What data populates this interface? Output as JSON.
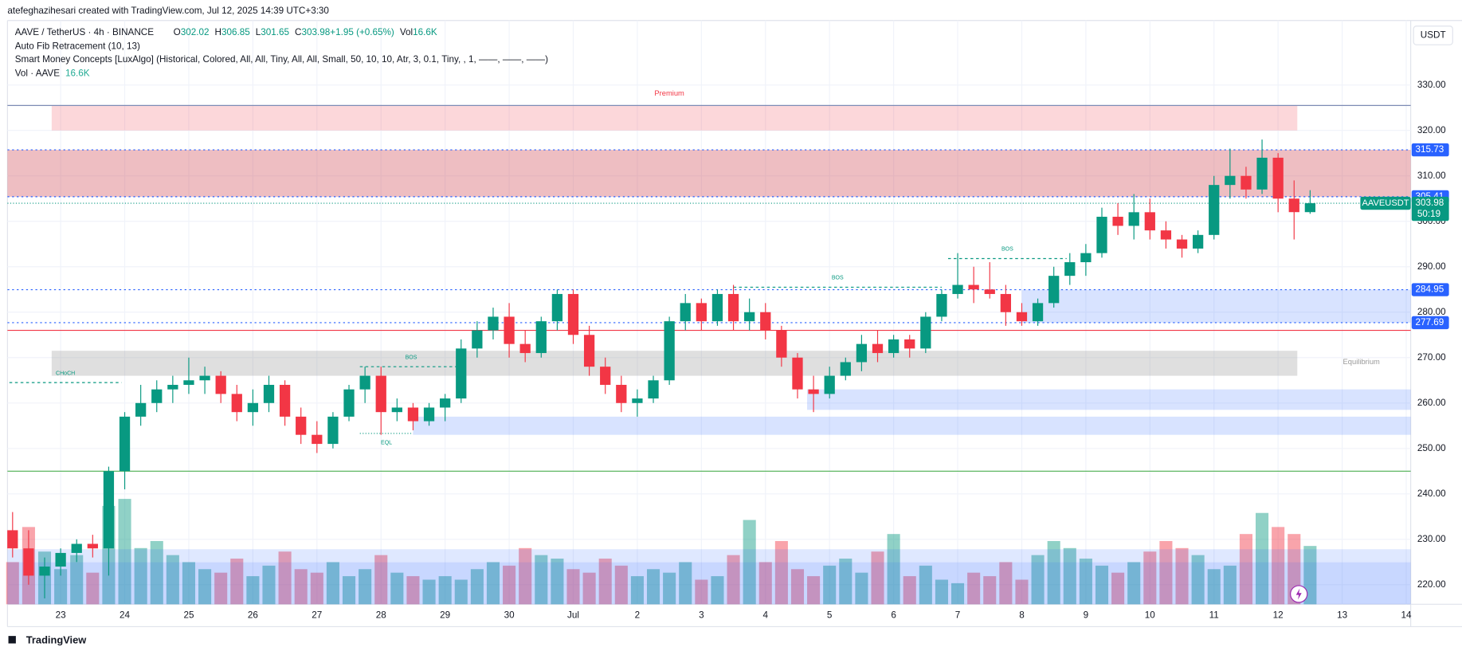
{
  "header": {
    "credit": "atefeghazihesari created with TradingView.com, Jul 12, 2025 14:39 UTC+3:30",
    "symbol": "AAVE / TetherUS · 4h · BINANCE",
    "quote": [
      {
        "k": "O",
        "v": "302.02"
      },
      {
        "k": "H",
        "v": "306.85"
      },
      {
        "k": "L",
        "v": "301.65"
      },
      {
        "k": "C",
        "v": "303.98"
      },
      {
        "k": "",
        "v": "+1.95 (+0.65%)"
      },
      {
        "k": "Vol",
        "v": "16.6K"
      }
    ],
    "indicators": [
      "Auto Fib Retracement (10, 13)",
      "Smart Money Concepts [LuxAlgo] (Historical, Colored, All, All, Tiny, All, All, Small, 50, 10, 10, Atr, 3, 0.1, Tiny, , 1, ——, ——, ——)"
    ],
    "volume_name": "Vol · AAVE",
    "volume_value": "16.6K",
    "currency": "USDT",
    "logo": "TradingView"
  },
  "chart_data": {
    "type": "candlestick",
    "up_color": "#089981",
    "down_color": "#f23645",
    "xlim": [
      22.17,
      44.07
    ],
    "xticks": [
      23,
      24,
      25,
      26,
      27,
      28,
      29,
      30,
      {
        "value": 31,
        "label": "Jul"
      },
      {
        "value": 32,
        "label": "2"
      },
      {
        "value": 33,
        "label": "3"
      },
      {
        "value": 34,
        "label": "4"
      },
      {
        "value": 35,
        "label": "5"
      },
      {
        "value": 36,
        "label": "6"
      },
      {
        "value": 37,
        "label": "7"
      },
      {
        "value": 38,
        "label": "8"
      },
      {
        "value": 39,
        "label": "9"
      },
      {
        "value": 40,
        "label": "10"
      },
      {
        "value": 41,
        "label": "11"
      },
      {
        "value": 42,
        "label": "12"
      },
      {
        "value": 43,
        "label": "13"
      },
      {
        "value": 44,
        "label": "14"
      }
    ],
    "ylim": [
      215.7,
      344.2
    ],
    "yticks": [
      {
        "value": 220,
        "label": "220.00"
      },
      {
        "value": 230,
        "label": "230.00"
      },
      {
        "value": 240,
        "label": "240.00"
      },
      {
        "value": 250,
        "label": "250.00"
      },
      {
        "value": 260,
        "label": "260.00"
      },
      {
        "value": 270,
        "label": "270.00"
      },
      {
        "value": 280,
        "label": "280.00"
      },
      {
        "value": 290,
        "label": "290.00"
      },
      {
        "value": 300,
        "label": "300.00"
      },
      {
        "value": 310,
        "label": "310.00"
      },
      {
        "value": 320,
        "label": "320.00"
      },
      {
        "value": 330,
        "label": "330.00"
      }
    ],
    "x": [
      22.25,
      22.5,
      22.75,
      23,
      23.25,
      23.5,
      23.75,
      24,
      24.25,
      24.5,
      24.75,
      25,
      25.25,
      25.5,
      25.75,
      26,
      26.25,
      26.5,
      26.75,
      27,
      27.25,
      27.5,
      27.75,
      28,
      28.25,
      28.5,
      28.75,
      29,
      29.25,
      29.5,
      29.75,
      30,
      30.25,
      30.5,
      30.75,
      31,
      31.25,
      31.5,
      31.75,
      32,
      32.25,
      32.5,
      32.75,
      33,
      33.25,
      33.5,
      33.75,
      34,
      34.25,
      34.5,
      34.75,
      35,
      35.25,
      35.5,
      35.75,
      36,
      36.25,
      36.5,
      36.75,
      37,
      37.25,
      37.5,
      37.75,
      38,
      38.25,
      38.5,
      38.75,
      39,
      39.25,
      39.5,
      39.75,
      40,
      40.25,
      40.5,
      40.75,
      41,
      41.25,
      41.5,
      41.75,
      42,
      42.25,
      42.5
    ],
    "ohlc": [
      [
        232,
        236,
        226,
        228
      ],
      [
        228,
        232,
        220,
        222
      ],
      [
        222,
        226,
        217,
        224
      ],
      [
        224,
        228,
        222,
        227
      ],
      [
        227,
        230,
        225,
        229
      ],
      [
        229,
        231,
        226,
        228
      ],
      [
        228,
        246,
        222,
        245
      ],
      [
        245,
        258,
        241,
        257
      ],
      [
        257,
        264,
        255,
        260
      ],
      [
        260,
        265,
        258,
        263
      ],
      [
        263,
        266,
        260,
        264
      ],
      [
        264,
        270,
        262,
        265
      ],
      [
        265,
        268,
        262,
        266
      ],
      [
        266,
        267,
        260,
        262
      ],
      [
        262,
        264,
        256,
        258
      ],
      [
        258,
        263,
        255,
        260
      ],
      [
        260,
        266,
        258,
        264
      ],
      [
        264,
        265,
        255,
        257
      ],
      [
        257,
        259,
        251,
        253
      ],
      [
        253,
        256,
        249,
        251
      ],
      [
        251,
        258,
        250,
        257
      ],
      [
        257,
        264,
        256,
        263
      ],
      [
        263,
        268,
        260,
        266
      ],
      [
        266,
        268,
        253,
        258
      ],
      [
        258,
        261,
        256,
        259
      ],
      [
        259,
        260,
        254,
        256
      ],
      [
        256,
        260,
        255,
        259
      ],
      [
        259,
        262,
        256,
        261
      ],
      [
        261,
        274,
        260,
        272
      ],
      [
        272,
        278,
        270,
        276
      ],
      [
        276,
        281,
        274,
        279
      ],
      [
        279,
        282,
        270,
        273
      ],
      [
        273,
        276,
        269,
        271
      ],
      [
        271,
        279,
        270,
        278
      ],
      [
        278,
        285,
        276,
        284
      ],
      [
        284,
        285,
        273,
        275
      ],
      [
        275,
        277,
        266,
        268
      ],
      [
        268,
        270,
        262,
        264
      ],
      [
        264,
        266,
        258,
        260
      ],
      [
        260,
        263,
        257,
        261
      ],
      [
        261,
        266,
        260,
        265
      ],
      [
        265,
        279,
        264,
        278
      ],
      [
        278,
        284,
        276,
        282
      ],
      [
        282,
        283,
        276,
        278
      ],
      [
        278,
        285,
        277,
        284
      ],
      [
        284,
        286,
        276,
        278
      ],
      [
        278,
        283,
        276,
        280
      ],
      [
        280,
        282,
        274,
        276
      ],
      [
        276,
        277,
        268,
        270
      ],
      [
        270,
        271,
        261,
        263
      ],
      [
        263,
        266,
        258,
        262
      ],
      [
        262,
        268,
        261,
        266
      ],
      [
        266,
        270,
        265,
        269
      ],
      [
        269,
        275,
        267,
        273
      ],
      [
        273,
        276,
        269,
        271
      ],
      [
        271,
        275,
        270,
        274
      ],
      [
        274,
        275,
        270,
        272
      ],
      [
        272,
        280,
        271,
        279
      ],
      [
        279,
        285,
        278,
        284
      ],
      [
        284,
        293,
        283,
        286
      ],
      [
        286,
        290,
        282,
        285
      ],
      [
        285,
        291,
        283,
        284
      ],
      [
        284,
        286,
        277,
        280
      ],
      [
        280,
        282,
        277,
        278
      ],
      [
        278,
        283,
        277,
        282
      ],
      [
        282,
        290,
        281,
        288
      ],
      [
        288,
        293,
        286,
        291
      ],
      [
        291,
        295,
        288,
        293
      ],
      [
        293,
        303,
        292,
        301
      ],
      [
        301,
        304,
        297,
        299
      ],
      [
        299,
        306,
        296,
        302
      ],
      [
        302,
        305,
        296,
        298
      ],
      [
        298,
        300,
        294,
        296
      ],
      [
        296,
        297,
        292,
        294
      ],
      [
        294,
        298,
        293,
        297
      ],
      [
        297,
        310,
        296,
        308
      ],
      [
        308,
        316,
        305,
        310
      ],
      [
        310,
        312,
        305,
        307
      ],
      [
        307,
        318,
        306,
        314
      ],
      [
        314,
        315,
        302,
        305
      ],
      [
        305,
        309,
        296,
        302.02
      ],
      [
        302.02,
        306.85,
        301.65,
        303.98
      ]
    ],
    "volume": [
      12,
      22,
      15,
      10,
      14,
      9,
      28,
      30,
      16,
      18,
      14,
      12,
      10,
      9,
      13,
      8,
      11,
      15,
      10,
      9,
      12,
      8,
      10,
      14,
      9,
      8,
      7,
      8,
      7,
      10,
      12,
      11,
      16,
      14,
      13,
      10,
      9,
      13,
      11,
      8,
      10,
      9,
      12,
      7,
      8,
      14,
      24,
      12,
      18,
      10,
      8,
      11,
      13,
      9,
      15,
      20,
      8,
      11,
      7,
      6,
      9,
      8,
      12,
      7,
      14,
      18,
      16,
      13,
      11,
      9,
      12,
      15,
      18,
      16,
      14,
      10,
      11,
      20,
      26,
      22,
      20,
      16.6
    ],
    "zones": [
      {
        "top": 325.5,
        "bottom": 320,
        "x0": 22.86,
        "x1": 42.3,
        "color": "rgba(242,54,69,0.2)"
      },
      {
        "top": 315.73,
        "bottom": 305.41,
        "x0": 22.17,
        "x1": 44.07,
        "color": "rgba(205,70,80,0.35)"
      },
      {
        "top": 271.5,
        "bottom": 266,
        "x0": 22.86,
        "x1": 42.3,
        "color": "rgba(150,150,150,0.3)"
      },
      {
        "top": 284.95,
        "bottom": 277.69,
        "x0": 38,
        "x1": 44.07,
        "color": "rgba(41,98,255,0.18)"
      },
      {
        "top": 263,
        "bottom": 258.5,
        "x0": 34.65,
        "x1": 44.07,
        "color": "rgba(41,98,255,0.18)"
      },
      {
        "top": 257,
        "bottom": 253,
        "x0": 28.5,
        "x1": 44.07,
        "color": "rgba(41,98,255,0.18)"
      }
    ],
    "lines": [
      {
        "value": 325.5,
        "color": "#7d8bb5",
        "dash": "none"
      },
      {
        "value": 315.73,
        "color": "#2962ff",
        "dash": "2 3"
      },
      {
        "value": 305.41,
        "color": "#2962ff",
        "dash": "2 3"
      },
      {
        "value": 303.98,
        "color": "#089981",
        "dash": "1 2"
      },
      {
        "value": 284.95,
        "color": "#2962ff",
        "dash": "2 3"
      },
      {
        "value": 277.69,
        "color": "#2962ff",
        "dash": "2 3"
      },
      {
        "value": 276,
        "color": "#f23645",
        "dash": "none"
      },
      {
        "value": 245,
        "color": "#4caf50",
        "dash": "none"
      }
    ],
    "structures": [
      {
        "label": "CHoCH",
        "value": 264.5,
        "x0": 22.2,
        "x1": 23.95,
        "color": "#089981",
        "dash": "3 3"
      },
      {
        "label": "BOS",
        "value": 268,
        "x0": 27.67,
        "x1": 29.27,
        "color": "#089981",
        "dash": "3 3"
      },
      {
        "label": "BOS",
        "value": 285.5,
        "x0": 33.5,
        "x1": 36.75,
        "color": "#089981",
        "dash": "3 3"
      },
      {
        "label": "BOS",
        "value": 291.8,
        "x0": 36.85,
        "x1": 38.7,
        "color": "#089981",
        "dash": "3 3"
      },
      {
        "label": "EQL",
        "value": 253.3,
        "x0": 27.67,
        "x1": 28.5,
        "color": "#089981",
        "dash": "1 2"
      }
    ],
    "annotations": [
      {
        "text": "Premium",
        "x": 32.5,
        "y": 328.1,
        "color": "#f23645"
      },
      {
        "text": "Equilibrium",
        "x": 43.3,
        "y": 269,
        "color": "#999"
      }
    ],
    "price_labels": [
      {
        "value": 315.73,
        "label": "315.73",
        "color": "#2962ff"
      },
      {
        "value": 305.41,
        "label": "305.41",
        "color": "#2962ff"
      },
      {
        "value": 284.95,
        "label": "284.95",
        "color": "#2962ff"
      },
      {
        "value": 277.69,
        "label": "277.69",
        "color": "#2962ff"
      }
    ],
    "last_price": {
      "value": 303.98,
      "label": "303.98",
      "symbol": "AAVEUSDT",
      "countdown": "50:19",
      "color": "#089981"
    }
  }
}
